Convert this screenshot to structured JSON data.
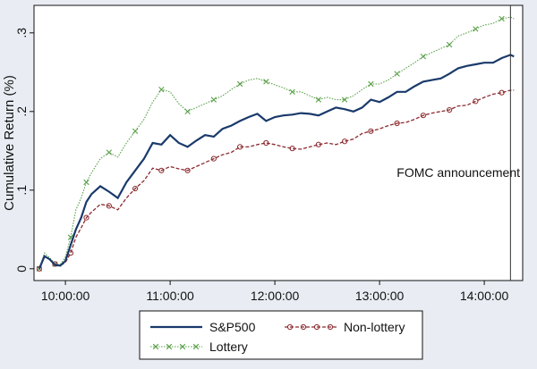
{
  "chart_data": {
    "type": "line",
    "title": "",
    "xlabel": "",
    "ylabel": "Cumulative Return (%)",
    "ylim": [
      -0.015,
      0.335
    ],
    "xlim": [
      "09:42",
      "14:22"
    ],
    "x_ticks": [
      "10:00:00",
      "11:00:00",
      "12:00:00",
      "13:00:00",
      "14:00:00"
    ],
    "y_ticks": [
      "0",
      ".1",
      ".2",
      ".3"
    ],
    "grid": false,
    "legend_position": "bottom",
    "annotation": "FOMC announcement",
    "announcement_time": "14:15",
    "x": [
      "09:45",
      "09:48",
      "09:51",
      "09:54",
      "09:57",
      "10:00",
      "10:03",
      "10:06",
      "10:09",
      "10:12",
      "10:15",
      "10:20",
      "10:25",
      "10:30",
      "10:35",
      "10:40",
      "10:45",
      "10:50",
      "10:55",
      "11:00",
      "11:05",
      "11:10",
      "11:15",
      "11:20",
      "11:25",
      "11:30",
      "11:35",
      "11:40",
      "11:45",
      "11:50",
      "11:55",
      "12:00",
      "12:05",
      "12:10",
      "12:15",
      "12:20",
      "12:25",
      "12:30",
      "12:35",
      "12:40",
      "12:45",
      "12:50",
      "12:55",
      "13:00",
      "13:05",
      "13:10",
      "13:15",
      "13:20",
      "13:25",
      "13:30",
      "13:35",
      "13:40",
      "13:45",
      "13:50",
      "13:55",
      "14:00",
      "14:05",
      "14:10",
      "14:15",
      "14:17"
    ],
    "series": [
      {
        "name": "S&P500",
        "color": "#1a3a6b",
        "marker": "none",
        "values": [
          0,
          0.016,
          0.012,
          0.005,
          0.004,
          0.01,
          0.03,
          0.05,
          0.065,
          0.085,
          0.095,
          0.105,
          0.098,
          0.09,
          0.11,
          0.125,
          0.14,
          0.16,
          0.158,
          0.17,
          0.16,
          0.155,
          0.163,
          0.17,
          0.168,
          0.178,
          0.182,
          0.188,
          0.193,
          0.197,
          0.188,
          0.193,
          0.195,
          0.196,
          0.198,
          0.197,
          0.195,
          0.2,
          0.205,
          0.203,
          0.2,
          0.205,
          0.215,
          0.212,
          0.218,
          0.225,
          0.225,
          0.232,
          0.238,
          0.24,
          0.242,
          0.248,
          0.255,
          0.258,
          0.26,
          0.262,
          0.262,
          0.268,
          0.272,
          0.27
        ]
      },
      {
        "name": "Non-lottery",
        "color": "#8b2a2e",
        "marker": "circle",
        "values": [
          0,
          0.015,
          0.012,
          0.006,
          0.004,
          0.008,
          0.02,
          0.04,
          0.052,
          0.065,
          0.072,
          0.082,
          0.08,
          0.075,
          0.09,
          0.102,
          0.112,
          0.128,
          0.125,
          0.13,
          0.127,
          0.125,
          0.13,
          0.135,
          0.14,
          0.145,
          0.148,
          0.155,
          0.155,
          0.158,
          0.16,
          0.158,
          0.155,
          0.153,
          0.152,
          0.155,
          0.158,
          0.16,
          0.158,
          0.162,
          0.165,
          0.172,
          0.175,
          0.178,
          0.182,
          0.185,
          0.186,
          0.19,
          0.195,
          0.198,
          0.2,
          0.202,
          0.207,
          0.208,
          0.213,
          0.218,
          0.222,
          0.224,
          0.227,
          0.227
        ]
      },
      {
        "name": "Lottery",
        "color": "#5aa14a",
        "marker": "x",
        "values": [
          0,
          0.02,
          0.014,
          0.006,
          0.005,
          0.015,
          0.04,
          0.075,
          0.09,
          0.11,
          0.122,
          0.14,
          0.148,
          0.142,
          0.16,
          0.175,
          0.19,
          0.212,
          0.228,
          0.225,
          0.21,
          0.2,
          0.205,
          0.21,
          0.215,
          0.22,
          0.228,
          0.235,
          0.24,
          0.242,
          0.238,
          0.234,
          0.23,
          0.225,
          0.225,
          0.22,
          0.215,
          0.218,
          0.215,
          0.215,
          0.22,
          0.228,
          0.235,
          0.235,
          0.24,
          0.248,
          0.255,
          0.262,
          0.27,
          0.275,
          0.28,
          0.285,
          0.296,
          0.3,
          0.305,
          0.31,
          0.312,
          0.318,
          0.32,
          0.318
        ]
      }
    ]
  },
  "colors": {
    "background": "#e9edf3",
    "plot_area": "#ffffff",
    "legend_box": "#ffffff",
    "frame": "#111111"
  }
}
